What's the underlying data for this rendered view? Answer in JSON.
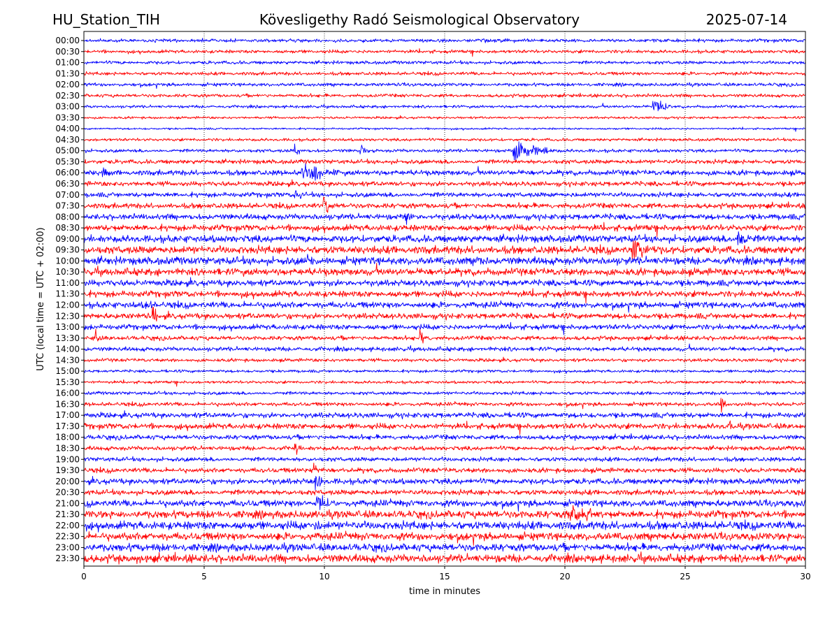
{
  "header": {
    "station": "HU_Station_TIH",
    "observatory": "Kövesligethy Radó Seismological Observatory",
    "date": "2025-07-14"
  },
  "chart_data": {
    "type": "line",
    "title": "Kövesligethy Radó Seismological Observatory",
    "xlabel": "time in minutes",
    "ylabel": "UTC (local time = UTC + 02:00)",
    "xlim": [
      0,
      30
    ],
    "x_ticks": [
      "0",
      "5",
      "10",
      "15",
      "20",
      "25",
      "30"
    ],
    "x_tick_values": [
      0,
      5,
      10,
      15,
      20,
      25,
      30
    ],
    "grid": "vertical dotted at x ticks",
    "row_labels": [
      "00:00",
      "00:30",
      "01:00",
      "01:30",
      "02:00",
      "02:30",
      "03:00",
      "03:30",
      "04:00",
      "04:30",
      "05:00",
      "05:30",
      "06:00",
      "06:30",
      "07:00",
      "07:30",
      "08:00",
      "08:30",
      "09:00",
      "09:30",
      "10:00",
      "10:30",
      "11:00",
      "11:30",
      "12:00",
      "12:30",
      "13:00",
      "13:30",
      "14:00",
      "14:30",
      "15:00",
      "15:30",
      "16:00",
      "16:30",
      "17:00",
      "17:30",
      "18:00",
      "18:30",
      "19:00",
      "19:30",
      "20:00",
      "20:30",
      "21:00",
      "21:30",
      "22:00",
      "22:30",
      "23:00",
      "23:30"
    ],
    "trace_colors": [
      "#0000ff",
      "#ff0000"
    ],
    "noise_level": [
      0.35,
      0.35,
      0.35,
      0.35,
      0.35,
      0.35,
      0.3,
      0.25,
      0.2,
      0.3,
      0.35,
      0.45,
      0.55,
      0.5,
      0.5,
      0.55,
      0.6,
      0.65,
      0.75,
      0.8,
      0.8,
      0.75,
      0.65,
      0.65,
      0.65,
      0.6,
      0.55,
      0.45,
      0.45,
      0.35,
      0.3,
      0.3,
      0.35,
      0.4,
      0.55,
      0.6,
      0.5,
      0.45,
      0.45,
      0.5,
      0.6,
      0.55,
      0.7,
      0.8,
      0.85,
      0.8,
      0.8,
      0.85
    ],
    "events": [
      {
        "row": "03:00",
        "minute": 23.7,
        "amplitude": 2.2,
        "duration": 0.8
      },
      {
        "row": "05:00",
        "minute": 8.8,
        "amplitude": 1.8,
        "duration": 0.2
      },
      {
        "row": "05:00",
        "minute": 11.5,
        "amplitude": 1.4,
        "duration": 0.5
      },
      {
        "row": "05:00",
        "minute": 17.9,
        "amplitude": 2.8,
        "duration": 1.8
      },
      {
        "row": "06:00",
        "minute": 9.1,
        "amplitude": 2.5,
        "duration": 1.5
      },
      {
        "row": "06:00",
        "minute": 0.8,
        "amplitude": 1.2,
        "duration": 0.5
      },
      {
        "row": "07:00",
        "minute": 8.8,
        "amplitude": 2.5,
        "duration": 0.3
      },
      {
        "row": "07:30",
        "minute": 10.0,
        "amplitude": 2.6,
        "duration": 0.4
      },
      {
        "row": "08:00",
        "minute": 13.4,
        "amplitude": 2.0,
        "duration": 0.3
      },
      {
        "row": "09:00",
        "minute": 27.2,
        "amplitude": 2.2,
        "duration": 0.6
      },
      {
        "row": "09:30",
        "minute": 22.8,
        "amplitude": 2.5,
        "duration": 1.2
      },
      {
        "row": "10:00",
        "minute": 9.3,
        "amplitude": 1.8,
        "duration": 0.4
      },
      {
        "row": "10:00",
        "minute": 16.4,
        "amplitude": 1.5,
        "duration": 0.4
      },
      {
        "row": "12:00",
        "minute": 2.6,
        "amplitude": 2.2,
        "duration": 0.3
      },
      {
        "row": "12:30",
        "minute": 2.9,
        "amplitude": 2.0,
        "duration": 0.3
      },
      {
        "row": "13:30",
        "minute": 0.5,
        "amplitude": 2.0,
        "duration": 0.2
      },
      {
        "row": "13:30",
        "minute": 14.0,
        "amplitude": 1.5,
        "duration": 0.4
      },
      {
        "row": "16:30",
        "minute": 26.5,
        "amplitude": 2.0,
        "duration": 0.2
      },
      {
        "row": "17:30",
        "minute": 26.8,
        "amplitude": 1.5,
        "duration": 0.2
      },
      {
        "row": "18:30",
        "minute": 8.8,
        "amplitude": 1.8,
        "duration": 0.2
      },
      {
        "row": "19:30",
        "minute": 9.6,
        "amplitude": 2.5,
        "duration": 0.2
      },
      {
        "row": "20:00",
        "minute": 9.6,
        "amplitude": 2.8,
        "duration": 0.3
      },
      {
        "row": "21:00",
        "minute": 9.7,
        "amplitude": 2.8,
        "duration": 0.6
      },
      {
        "row": "21:30",
        "minute": 20.2,
        "amplitude": 2.4,
        "duration": 1.5
      },
      {
        "row": "22:00",
        "minute": 9.6,
        "amplitude": 1.8,
        "duration": 0.3
      }
    ]
  }
}
